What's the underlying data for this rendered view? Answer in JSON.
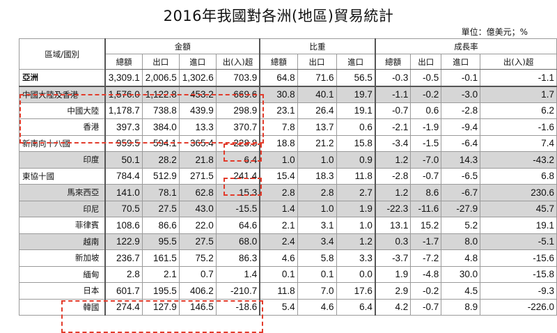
{
  "title": "2016年我國對各洲(地區)貿易統計",
  "unit": "單位：億美元；%",
  "header": {
    "region_label": "區域/國別",
    "groups": [
      "金額",
      "比重",
      "成長率"
    ],
    "amount_cols": [
      "總額",
      "出口",
      "進口",
      "出(入)超"
    ],
    "share_cols": [
      "總額",
      "出口",
      "進口"
    ],
    "growth_cols": [
      "總額",
      "出口",
      "進口",
      "出(入)超"
    ]
  },
  "rows": [
    {
      "name": "亞洲",
      "level": 0,
      "shaded": false,
      "amount": [
        "3,309.1",
        "2,006.5",
        "1,302.6",
        "703.9"
      ],
      "share": [
        "64.8",
        "71.6",
        "56.5"
      ],
      "growth": [
        "-0.3",
        "-0.5",
        "-0.1",
        "-1.1"
      ]
    },
    {
      "name": "中國大陸及香港",
      "level": 1,
      "shaded": true,
      "amount": [
        "1,576.0",
        "1,122.8",
        "453.2",
        "669.6"
      ],
      "share": [
        "30.8",
        "40.1",
        "19.7"
      ],
      "growth": [
        "-1.1",
        "-0.2",
        "-3.0",
        "1.7"
      ]
    },
    {
      "name": "中國大陸",
      "level": 2,
      "shaded": false,
      "amount": [
        "1,178.7",
        "738.8",
        "439.9",
        "298.9"
      ],
      "share": [
        "23.1",
        "26.4",
        "19.1"
      ],
      "growth": [
        "-0.7",
        "0.6",
        "-2.8",
        "6.2"
      ]
    },
    {
      "name": "香港",
      "level": 2,
      "shaded": false,
      "amount": [
        "397.3",
        "384.0",
        "13.3",
        "370.7"
      ],
      "share": [
        "7.8",
        "13.7",
        "0.6"
      ],
      "growth": [
        "-2.1",
        "-1.9",
        "-9.4",
        "-1.6"
      ]
    },
    {
      "name": "新南向十八國",
      "level": 1,
      "shaded": false,
      "amount": [
        "959.5",
        "594.1",
        "365.4",
        "228.8"
      ],
      "share": [
        "18.8",
        "21.2",
        "15.8"
      ],
      "growth": [
        "-3.4",
        "-1.5",
        "-6.4",
        "7.4"
      ]
    },
    {
      "name": "印度",
      "level": 2,
      "shaded": true,
      "amount": [
        "50.1",
        "28.2",
        "21.8",
        "6.4"
      ],
      "share": [
        "1.0",
        "1.0",
        "0.9"
      ],
      "growth": [
        "1.2",
        "-7.0",
        "14.3",
        "-43.2"
      ]
    },
    {
      "name": "東協十國",
      "level": 1,
      "shaded": false,
      "amount": [
        "784.4",
        "512.9",
        "271.5",
        "241.4"
      ],
      "share": [
        "15.4",
        "18.3",
        "11.8"
      ],
      "growth": [
        "-2.8",
        "-0.7",
        "-6.5",
        "6.8"
      ]
    },
    {
      "name": "馬來西亞",
      "level": 2,
      "shaded": true,
      "amount": [
        "141.0",
        "78.1",
        "62.8",
        "15.3"
      ],
      "share": [
        "2.8",
        "2.8",
        "2.7"
      ],
      "growth": [
        "1.2",
        "8.6",
        "-6.7",
        "230.6"
      ]
    },
    {
      "name": "印尼",
      "level": 2,
      "shaded": true,
      "amount": [
        "70.5",
        "27.5",
        "43.0",
        "-15.5"
      ],
      "share": [
        "1.4",
        "1.0",
        "1.9"
      ],
      "growth": [
        "-22.3",
        "-11.6",
        "-27.9",
        "45.7"
      ]
    },
    {
      "name": "菲律賓",
      "level": 2,
      "shaded": false,
      "amount": [
        "108.6",
        "86.6",
        "22.0",
        "64.6"
      ],
      "share": [
        "2.1",
        "3.1",
        "1.0"
      ],
      "growth": [
        "13.1",
        "15.2",
        "5.2",
        "19.1"
      ]
    },
    {
      "name": "越南",
      "level": 2,
      "shaded": true,
      "amount": [
        "122.9",
        "95.5",
        "27.5",
        "68.0"
      ],
      "share": [
        "2.4",
        "3.4",
        "1.2"
      ],
      "growth": [
        "0.3",
        "-1.7",
        "8.0",
        "-5.1"
      ]
    },
    {
      "name": "新加坡",
      "level": 2,
      "shaded": false,
      "amount": [
        "236.7",
        "161.5",
        "75.2",
        "86.3"
      ],
      "share": [
        "4.6",
        "5.8",
        "3.3"
      ],
      "growth": [
        "-3.7",
        "-7.2",
        "4.8",
        "-15.6"
      ]
    },
    {
      "name": "緬甸",
      "level": 2,
      "shaded": false,
      "amount": [
        "2.8",
        "2.1",
        "0.7",
        "1.4"
      ],
      "share": [
        "0.1",
        "0.1",
        "0.0"
      ],
      "growth": [
        "1.9",
        "-4.8",
        "30.0",
        "-15.8"
      ]
    },
    {
      "name": "日本",
      "level": 2,
      "shaded": false,
      "amount": [
        "601.7",
        "195.5",
        "406.2",
        "-210.7"
      ],
      "share": [
        "11.8",
        "7.0",
        "17.6"
      ],
      "growth": [
        "2.9",
        "-0.2",
        "4.5",
        "-9.3"
      ]
    },
    {
      "name": "韓國",
      "level": 2,
      "shaded": false,
      "amount": [
        "274.4",
        "127.9",
        "146.5",
        "-18.6"
      ],
      "share": [
        "5.4",
        "4.6",
        "6.4"
      ],
      "growth": [
        "4.2",
        "-0.7",
        "8.9",
        "-226.0"
      ]
    }
  ]
}
